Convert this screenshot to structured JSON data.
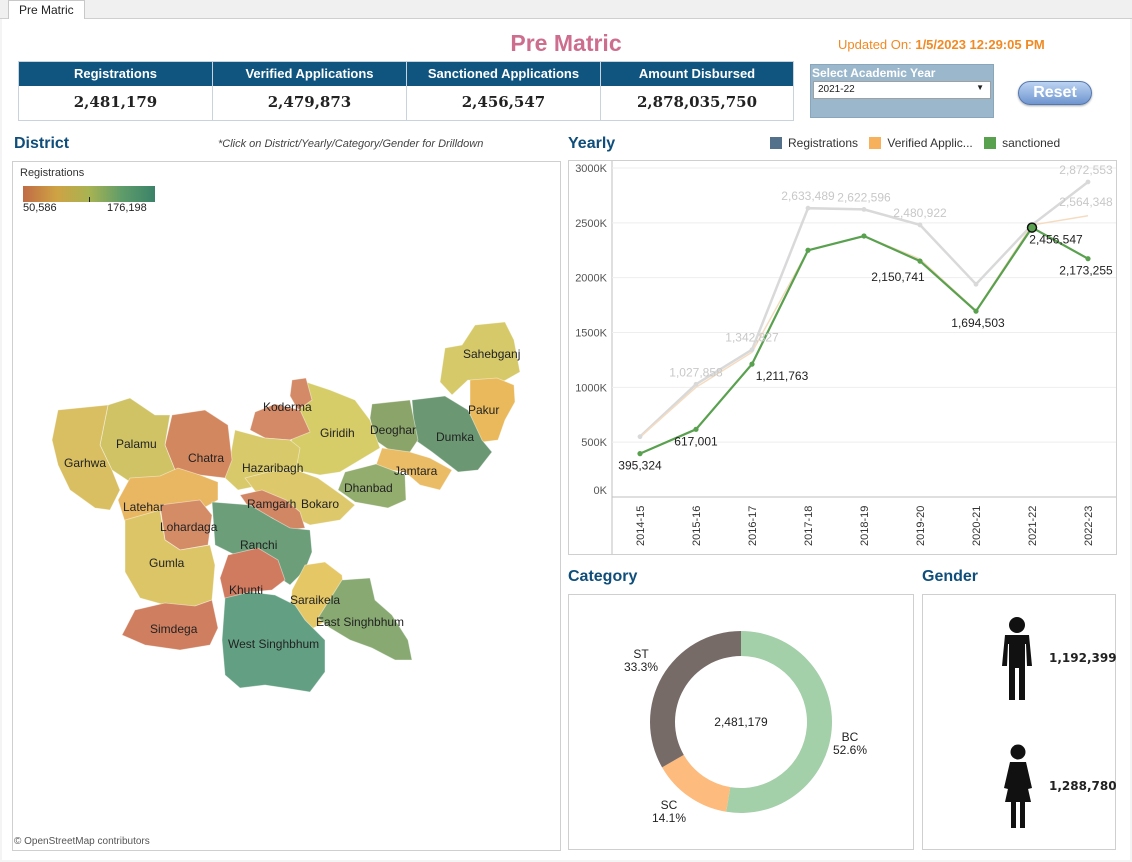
{
  "tab": "Pre Matric",
  "title": "Pre Matric",
  "updated_label": "Updated On:",
  "updated_value": "1/5/2023 12:29:05 PM",
  "kpis": [
    {
      "label": "Registrations",
      "value": "2,481,179"
    },
    {
      "label": "Verified Applications",
      "value": "2,479,873"
    },
    {
      "label": "Sanctioned Applications",
      "value": "2,456,547"
    },
    {
      "label": "Amount Disbursed",
      "value": "2,878,035,750"
    }
  ],
  "year_filter": {
    "label": "Select Academic Year",
    "selected": "2021-22"
  },
  "reset_label": "Reset",
  "district": {
    "title": "District",
    "note": "*Click on District/Yearly/Category/Gender for Drilldown",
    "legend_title": "Registrations",
    "legend_min": "50,586",
    "legend_max": "176,198",
    "attribution": "© OpenStreetMap contributors",
    "labels": [
      "Sahebganj",
      "Koderma",
      "Pakur",
      "Giridih",
      "Deoghar",
      "Dumka",
      "Palamu",
      "Chatra",
      "Garhwa",
      "Hazaribagh",
      "Jamtara",
      "Dhanbad",
      "Ramgarh",
      "Bokaro",
      "Latehar",
      "Lohardaga",
      "Ranchi",
      "Gumla",
      "Khunti",
      "Saraikela",
      "East Singhbhum",
      "Simdega",
      "West Singhbhum"
    ]
  },
  "yearly": {
    "title": "Yearly",
    "legend": [
      {
        "name": "Registrations",
        "color": "#54718c"
      },
      {
        "name": "Verified Applic...",
        "color": "#f7b05b"
      },
      {
        "name": "sanctioned",
        "color": "#59a14f"
      }
    ]
  },
  "chart_data": [
    {
      "type": "line",
      "x": [
        "2014-15",
        "2015-16",
        "2016-17",
        "2017-18",
        "2018-19",
        "2019-20",
        "2020-21",
        "2021-22",
        "2022-23"
      ],
      "ylim": [
        0,
        3000000
      ],
      "y_ticks": [
        "0K",
        "500K",
        "1000K",
        "1500K",
        "2000K",
        "2500K",
        "3000K"
      ],
      "series": [
        {
          "name": "Registrations",
          "values": [
            550000,
            1027858,
            1342827,
            2633489,
            2622596,
            2480922,
            1940000,
            2481179,
            2872553
          ],
          "labels": [
            "",
            "1,027,858",
            "1,342,827",
            "2,633,489",
            "2,622,596",
            "2,480,922",
            "",
            "",
            "2,872,553"
          ]
        },
        {
          "name": "Verified Applic...",
          "values": [
            545000,
            1000000,
            1320000,
            2250000,
            2380000,
            2170000,
            1700000,
            2479873,
            2564348
          ],
          "labels": [
            "",
            "",
            "",
            "",
            "",
            "",
            "",
            "",
            "2,564,348"
          ]
        },
        {
          "name": "sanctioned",
          "values": [
            395324,
            617001,
            1211763,
            2250000,
            2380000,
            2150741,
            1694503,
            2456547,
            2173255
          ],
          "labels": [
            "395,324",
            "617,001",
            "1,211,763",
            "",
            "",
            "2,150,741",
            "1,694,503",
            "2,456,547",
            "2,173,255"
          ]
        }
      ]
    },
    {
      "type": "pie",
      "title": "Category",
      "center_label": "2,481,179",
      "slices": [
        {
          "name": "BC",
          "percent": 52.6,
          "label": "52.6%",
          "color": "#a3cfa9"
        },
        {
          "name": "SC",
          "percent": 14.1,
          "label": "14.1%",
          "color": "#fdbb7e"
        },
        {
          "name": "ST",
          "percent": 33.3,
          "label": "33.3%",
          "color": "#776b68"
        }
      ]
    }
  ],
  "gender": {
    "title": "Gender",
    "male_value": "1,192,399",
    "female_value": "1,288,780"
  }
}
